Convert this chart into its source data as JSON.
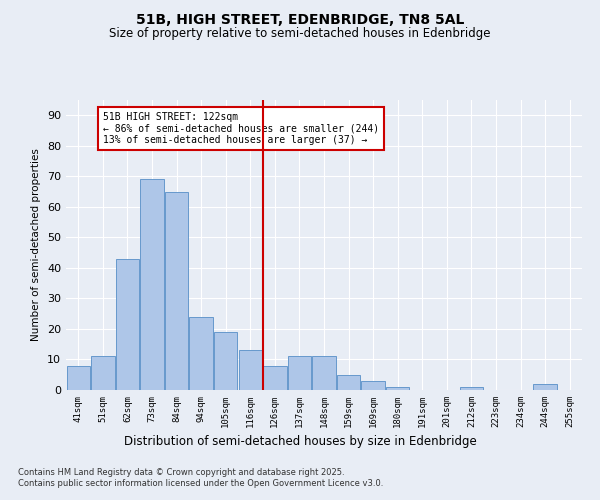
{
  "title1": "51B, HIGH STREET, EDENBRIDGE, TN8 5AL",
  "title2": "Size of property relative to semi-detached houses in Edenbridge",
  "xlabel": "Distribution of semi-detached houses by size in Edenbridge",
  "ylabel": "Number of semi-detached properties",
  "categories": [
    "41sqm",
    "51sqm",
    "62sqm",
    "73sqm",
    "84sqm",
    "94sqm",
    "105sqm",
    "116sqm",
    "126sqm",
    "137sqm",
    "148sqm",
    "159sqm",
    "169sqm",
    "180sqm",
    "191sqm",
    "201sqm",
    "212sqm",
    "223sqm",
    "234sqm",
    "244sqm",
    "255sqm"
  ],
  "values": [
    8,
    11,
    43,
    69,
    65,
    24,
    19,
    13,
    8,
    11,
    11,
    5,
    3,
    1,
    0,
    0,
    1,
    0,
    0,
    2,
    0
  ],
  "bar_color": "#aec6e8",
  "bar_edge_color": "#6699cc",
  "background_color": "#e8edf5",
  "grid_color": "#ffffff",
  "vline_color": "#cc0000",
  "annotation_text": "51B HIGH STREET: 122sqm\n← 86% of semi-detached houses are smaller (244)\n13% of semi-detached houses are larger (37) →",
  "annotation_box_color": "#ffffff",
  "annotation_box_edge": "#cc0000",
  "ylim": [
    0,
    95
  ],
  "yticks": [
    0,
    10,
    20,
    30,
    40,
    50,
    60,
    70,
    80,
    90
  ],
  "footer1": "Contains HM Land Registry data © Crown copyright and database right 2025.",
  "footer2": "Contains public sector information licensed under the Open Government Licence v3.0."
}
